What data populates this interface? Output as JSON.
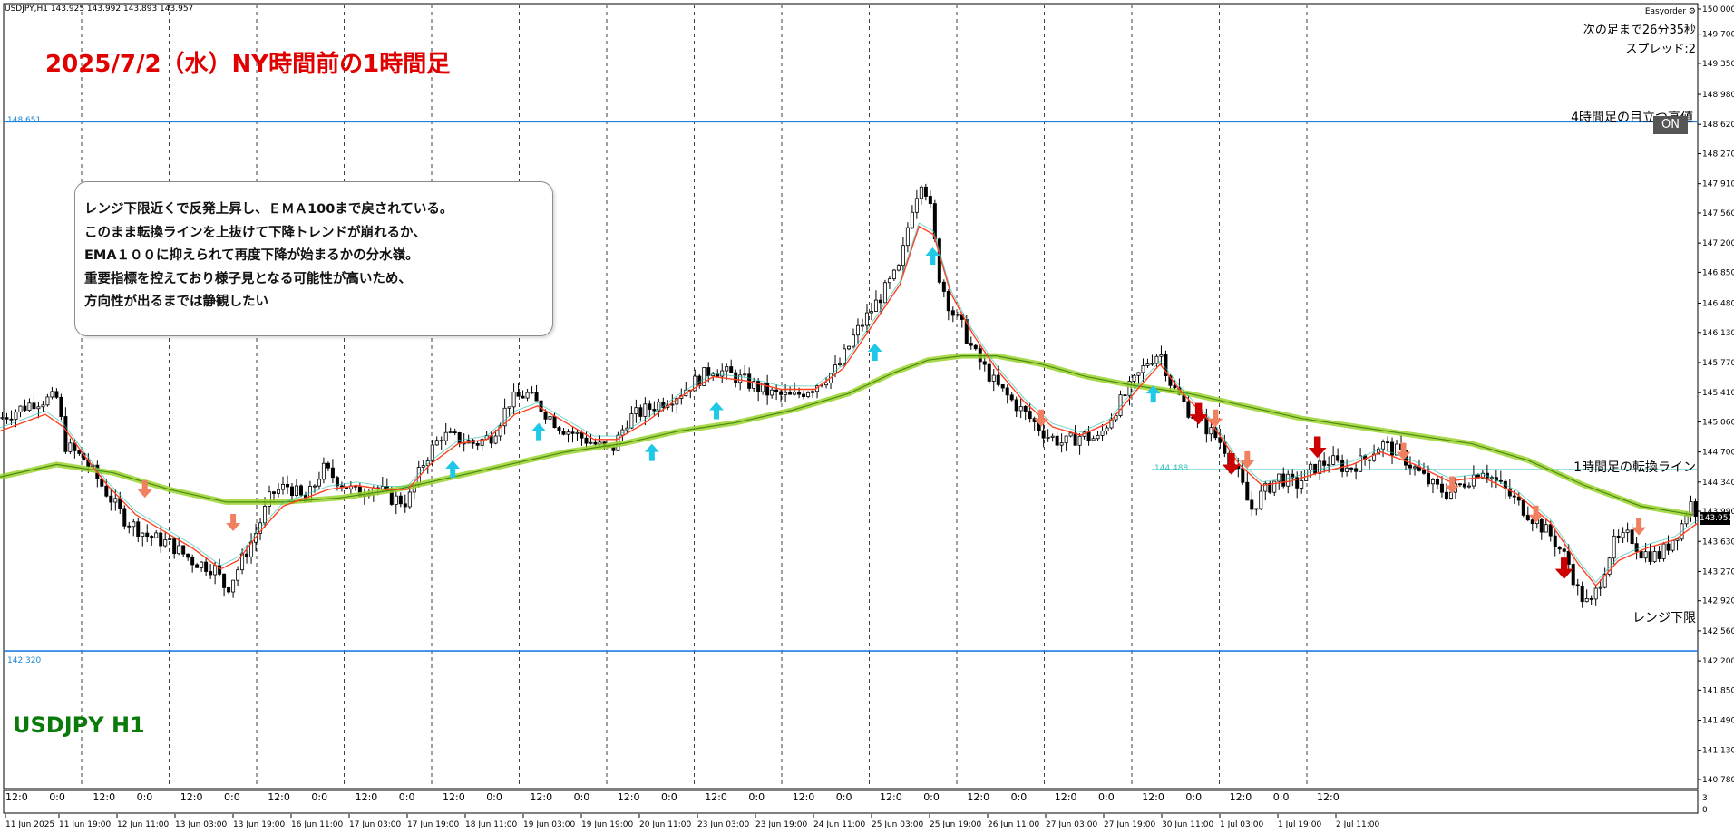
{
  "header": {
    "symbol_info": "USDJPY,H1  143.925 143.992 143.893 143.957",
    "ea_name": "Easyorder",
    "countdown": "次の足まで26分35秒",
    "spread": "スプレッド:2"
  },
  "title": "2025/7/2（水）NY時間前の1時間足",
  "symbol_label": "USDJPY H1",
  "note": {
    "lines": [
      "レンジ下限近くで反発上昇し、ＥＭＡ100まで戻されている。",
      "このまま転換ラインを上抜けて下降トレンドが崩れるか、",
      "EMA１００に抑えられて再度下降が始まるかの分水嶺。",
      "重要指標を控えており様子見となる可能性が高いため、",
      "方向性が出るまでは静観したい"
    ]
  },
  "line_labels": {
    "h4_target": "4時間足の目立つ高値",
    "h1_reversal": "1時間足の転換ライン",
    "range_low": "レンジ下限"
  },
  "toggle": {
    "label": "ON"
  },
  "chart_data": {
    "type": "candlestick",
    "symbol": "USDJPY",
    "timeframe": "H1",
    "ylim": [
      140.78,
      150.0
    ],
    "y_ticks": [
      "150.000",
      "149.700",
      "149.350",
      "148.980",
      "148.620",
      "148.270",
      "147.910",
      "147.560",
      "147.200",
      "146.850",
      "146.480",
      "146.130",
      "145.770",
      "145.410",
      "145.060",
      "144.700",
      "144.340",
      "143.990",
      "143.630",
      "143.270",
      "142.920",
      "142.560",
      "142.200",
      "141.850",
      "141.490",
      "141.130",
      "140.780"
    ],
    "current_price": "143.957",
    "current_price_value": 143.957,
    "ohlc_last": {
      "open": 143.925,
      "high": 143.992,
      "low": 143.893,
      "close": 143.957
    },
    "horizontal_lines": [
      {
        "label_ref": "h4_target",
        "value": 148.651,
        "value_text": "148.651",
        "color": "#1f7fe0"
      },
      {
        "label_ref": "h1_reversal",
        "value": 144.488,
        "value_text": "144.488",
        "color": "#30c0c0"
      },
      {
        "label_ref": "range_low",
        "value": 142.32,
        "value_text": "142.320",
        "color": "#1f7fe0"
      }
    ],
    "time_labels": [
      "11 Jun 2025",
      "11 Jun 19:00",
      "12 Jun 11:00",
      "13 Jun 03:00",
      "13 Jun 19:00",
      "16 Jun 11:00",
      "17 Jun 03:00",
      "17 Jun 19:00",
      "18 Jun 11:00",
      "19 Jun 03:00",
      "19 Jun 19:00",
      "20 Jun 11:00",
      "23 Jun 03:00",
      "23 Jun 19:00",
      "24 Jun 11:00",
      "25 Jun 03:00",
      "25 Jun 19:00",
      "26 Jun 11:00",
      "27 Jun 03:00",
      "27 Jun 19:00",
      "30 Jun 11:00",
      "1 Jul 03:00",
      "1 Jul 19:00",
      "2 Jul 11:00"
    ],
    "subwindow_labels": [
      "12:0",
      "0:0",
      "12:0",
      "0:0",
      "12:0",
      "0:0",
      "12:0",
      "0:0",
      "12:0",
      "0:0",
      "12:0",
      "0:0",
      "12:0",
      "0:0",
      "12:0",
      "0:0",
      "12:0",
      "0:0",
      "12:0",
      "0:0",
      "12:0",
      "0:0",
      "12:0",
      "0:0",
      "12:0",
      "0:0",
      "12:0",
      "0:0",
      "12:0",
      "0:0",
      "12:0"
    ],
    "subwindow_scale": [
      "3",
      "0"
    ],
    "price_path": [
      [
        0,
        145.1
      ],
      [
        30,
        145.3
      ],
      [
        52,
        145.35
      ],
      [
        56,
        144.8
      ],
      [
        75,
        144.6
      ],
      [
        90,
        144.3
      ],
      [
        110,
        143.9
      ],
      [
        130,
        143.7
      ],
      [
        150,
        143.6
      ],
      [
        170,
        143.4
      ],
      [
        190,
        143.3
      ],
      [
        200,
        143.05
      ],
      [
        210,
        143.3
      ],
      [
        225,
        143.7
      ],
      [
        240,
        144.2
      ],
      [
        255,
        144.3
      ],
      [
        270,
        144.1
      ],
      [
        285,
        144.5
      ],
      [
        300,
        144.35
      ],
      [
        315,
        144.2
      ],
      [
        330,
        144.3
      ],
      [
        345,
        144.15
      ],
      [
        360,
        144.1
      ],
      [
        375,
        144.6
      ],
      [
        390,
        144.9
      ],
      [
        405,
        144.85
      ],
      [
        420,
        144.8
      ],
      [
        435,
        144.9
      ],
      [
        450,
        145.3
      ],
      [
        465,
        145.4
      ],
      [
        480,
        145.2
      ],
      [
        495,
        145.0
      ],
      [
        510,
        144.9
      ],
      [
        525,
        144.8
      ],
      [
        540,
        144.7
      ],
      [
        555,
        145.1
      ],
      [
        570,
        145.2
      ],
      [
        585,
        145.3
      ],
      [
        600,
        145.4
      ],
      [
        615,
        145.55
      ],
      [
        630,
        145.7
      ],
      [
        650,
        145.6
      ],
      [
        665,
        145.5
      ],
      [
        680,
        145.4
      ],
      [
        700,
        145.35
      ],
      [
        720,
        145.5
      ],
      [
        740,
        145.7
      ],
      [
        755,
        146.1
      ],
      [
        770,
        146.4
      ],
      [
        780,
        146.6
      ],
      [
        795,
        146.9
      ],
      [
        805,
        147.6
      ],
      [
        815,
        148.0
      ],
      [
        822,
        147.6
      ],
      [
        830,
        146.8
      ],
      [
        840,
        146.4
      ],
      [
        850,
        146.2
      ],
      [
        860,
        145.9
      ],
      [
        870,
        145.7
      ],
      [
        880,
        145.5
      ],
      [
        895,
        145.3
      ],
      [
        910,
        145.1
      ],
      [
        925,
        144.9
      ],
      [
        940,
        144.8
      ],
      [
        955,
        144.9
      ],
      [
        970,
        144.85
      ],
      [
        985,
        145.2
      ],
      [
        1000,
        145.5
      ],
      [
        1015,
        145.8
      ],
      [
        1025,
        145.9
      ],
      [
        1035,
        145.5
      ],
      [
        1050,
        145.2
      ],
      [
        1065,
        145.0
      ],
      [
        1080,
        144.8
      ],
      [
        1095,
        144.4
      ],
      [
        1105,
        144.0
      ],
      [
        1115,
        144.2
      ],
      [
        1130,
        144.4
      ],
      [
        1145,
        144.3
      ],
      [
        1160,
        144.5
      ],
      [
        1175,
        144.6
      ],
      [
        1190,
        144.5
      ],
      [
        1205,
        144.6
      ],
      [
        1220,
        144.8
      ],
      [
        1235,
        144.7
      ],
      [
        1250,
        144.5
      ],
      [
        1265,
        144.3
      ],
      [
        1280,
        144.2
      ],
      [
        1295,
        144.35
      ],
      [
        1310,
        144.5
      ],
      [
        1325,
        144.3
      ],
      [
        1340,
        144.1
      ],
      [
        1355,
        143.9
      ],
      [
        1370,
        143.7
      ],
      [
        1385,
        143.4
      ],
      [
        1395,
        143.0
      ],
      [
        1405,
        142.85
      ],
      [
        1415,
        143.2
      ],
      [
        1425,
        143.6
      ],
      [
        1440,
        143.7
      ],
      [
        1450,
        143.5
      ],
      [
        1465,
        143.45
      ],
      [
        1475,
        143.6
      ],
      [
        1485,
        143.8
      ],
      [
        1493,
        144.1
      ],
      [
        1500,
        143.96
      ]
    ],
    "ema_short_path": [
      [
        0,
        144.95
      ],
      [
        40,
        145.15
      ],
      [
        56,
        145.0
      ],
      [
        75,
        144.65
      ],
      [
        95,
        144.3
      ],
      [
        120,
        143.95
      ],
      [
        145,
        143.75
      ],
      [
        170,
        143.55
      ],
      [
        195,
        143.3
      ],
      [
        210,
        143.4
      ],
      [
        230,
        143.75
      ],
      [
        250,
        144.05
      ],
      [
        270,
        144.15
      ],
      [
        290,
        144.25
      ],
      [
        315,
        144.3
      ],
      [
        340,
        144.25
      ],
      [
        360,
        144.25
      ],
      [
        380,
        144.55
      ],
      [
        405,
        144.8
      ],
      [
        430,
        144.85
      ],
      [
        455,
        145.15
      ],
      [
        475,
        145.25
      ],
      [
        500,
        145.05
      ],
      [
        525,
        144.85
      ],
      [
        545,
        144.85
      ],
      [
        570,
        145.05
      ],
      [
        600,
        145.35
      ],
      [
        630,
        145.6
      ],
      [
        660,
        145.55
      ],
      [
        690,
        145.45
      ],
      [
        720,
        145.45
      ],
      [
        745,
        145.7
      ],
      [
        770,
        146.2
      ],
      [
        795,
        146.7
      ],
      [
        812,
        147.4
      ],
      [
        825,
        147.3
      ],
      [
        840,
        146.6
      ],
      [
        860,
        146.1
      ],
      [
        880,
        145.7
      ],
      [
        905,
        145.3
      ],
      [
        930,
        145.0
      ],
      [
        955,
        144.9
      ],
      [
        980,
        145.05
      ],
      [
        1005,
        145.45
      ],
      [
        1025,
        145.75
      ],
      [
        1045,
        145.4
      ],
      [
        1070,
        145.05
      ],
      [
        1095,
        144.55
      ],
      [
        1115,
        144.3
      ],
      [
        1140,
        144.35
      ],
      [
        1165,
        144.45
      ],
      [
        1195,
        144.55
      ],
      [
        1220,
        144.7
      ],
      [
        1250,
        144.55
      ],
      [
        1280,
        144.35
      ],
      [
        1310,
        144.4
      ],
      [
        1340,
        144.2
      ],
      [
        1370,
        143.85
      ],
      [
        1395,
        143.35
      ],
      [
        1410,
        143.1
      ],
      [
        1430,
        143.4
      ],
      [
        1455,
        143.55
      ],
      [
        1480,
        143.65
      ],
      [
        1500,
        143.85
      ]
    ],
    "ema100_path": [
      [
        0,
        144.4
      ],
      [
        50,
        144.55
      ],
      [
        100,
        144.45
      ],
      [
        150,
        144.25
      ],
      [
        200,
        144.1
      ],
      [
        250,
        144.1
      ],
      [
        300,
        144.15
      ],
      [
        350,
        144.25
      ],
      [
        400,
        144.4
      ],
      [
        450,
        144.55
      ],
      [
        500,
        144.7
      ],
      [
        550,
        144.8
      ],
      [
        600,
        144.95
      ],
      [
        650,
        145.05
      ],
      [
        700,
        145.2
      ],
      [
        750,
        145.4
      ],
      [
        790,
        145.65
      ],
      [
        820,
        145.8
      ],
      [
        850,
        145.85
      ],
      [
        880,
        145.85
      ],
      [
        920,
        145.75
      ],
      [
        960,
        145.6
      ],
      [
        1000,
        145.5
      ],
      [
        1050,
        145.4
      ],
      [
        1100,
        145.25
      ],
      [
        1150,
        145.1
      ],
      [
        1200,
        145.0
      ],
      [
        1250,
        144.9
      ],
      [
        1300,
        144.8
      ],
      [
        1350,
        144.6
      ],
      [
        1400,
        144.3
      ],
      [
        1450,
        144.05
      ],
      [
        1495,
        143.95
      ]
    ],
    "arrows": [
      {
        "x": 128,
        "price": 144.25,
        "dir": "down",
        "color": "#f08060"
      },
      {
        "x": 206,
        "price": 143.85,
        "dir": "down",
        "color": "#f08060"
      },
      {
        "x": 400,
        "price": 144.5,
        "dir": "up",
        "color": "#20c8e8"
      },
      {
        "x": 476,
        "price": 144.95,
        "dir": "up",
        "color": "#20c8e8"
      },
      {
        "x": 576,
        "price": 144.7,
        "dir": "up",
        "color": "#20c8e8"
      },
      {
        "x": 633,
        "price": 145.2,
        "dir": "up",
        "color": "#20c8e8"
      },
      {
        "x": 773,
        "price": 145.9,
        "dir": "up",
        "color": "#20c8e8"
      },
      {
        "x": 824,
        "price": 147.05,
        "dir": "up",
        "color": "#20c8e8"
      },
      {
        "x": 920,
        "price": 145.1,
        "dir": "down",
        "color": "#f08060"
      },
      {
        "x": 1019,
        "price": 145.4,
        "dir": "up",
        "color": "#20c8e8"
      },
      {
        "x": 1059,
        "price": 145.15,
        "dir": "down",
        "color": "#cc0000"
      },
      {
        "x": 1074,
        "price": 145.1,
        "dir": "down",
        "color": "#f08060"
      },
      {
        "x": 1088,
        "price": 144.55,
        "dir": "down",
        "color": "#cc0000"
      },
      {
        "x": 1102,
        "price": 144.6,
        "dir": "down",
        "color": "#f08060"
      },
      {
        "x": 1164,
        "price": 144.75,
        "dir": "down",
        "color": "#cc0000"
      },
      {
        "x": 1240,
        "price": 144.7,
        "dir": "down",
        "color": "#f08060"
      },
      {
        "x": 1283,
        "price": 144.3,
        "dir": "down",
        "color": "#f08060"
      },
      {
        "x": 1357,
        "price": 143.95,
        "dir": "down",
        "color": "#f08060"
      },
      {
        "x": 1382,
        "price": 143.3,
        "dir": "down",
        "color": "#cc0000"
      },
      {
        "x": 1448,
        "price": 143.8,
        "dir": "down",
        "color": "#f08060"
      }
    ],
    "grid": "vertical-dashed",
    "legend": "none"
  }
}
